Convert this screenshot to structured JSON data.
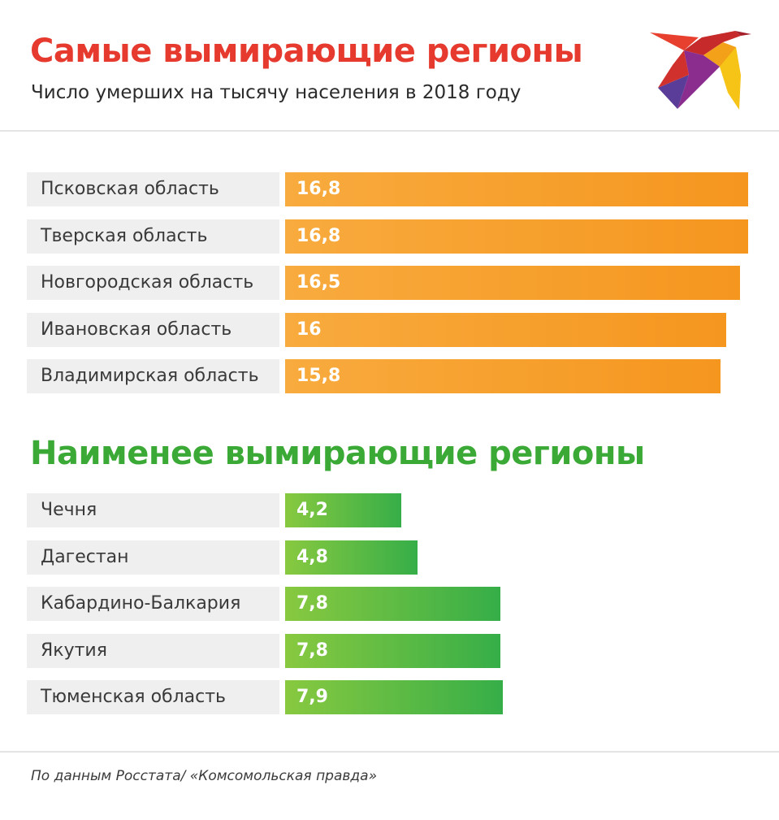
{
  "header": {
    "title": "Самые вымирающие регионы",
    "subtitle": "Число умерших на тысячу населения в 2018 году"
  },
  "colors": {
    "title_red": "#e63a2e",
    "title_green": "#3aa935",
    "bar_orange": "#f5961f",
    "bar_green": "#36ae48"
  },
  "logo": {
    "icon": "kp-swallow-logo-icon"
  },
  "chart_data": [
    {
      "type": "bar",
      "orientation": "horizontal",
      "title": "Самые вымирающие регионы",
      "categories": [
        "Псковская область",
        "Тверская область",
        "Новгородская область",
        "Ивановская область",
        "Владимирская область"
      ],
      "values": [
        16.8,
        16.8,
        16.5,
        16,
        15.8
      ],
      "value_labels": [
        "16,8",
        "16,8",
        "16,5",
        "16",
        "15,8"
      ],
      "xlim": [
        0,
        16.8
      ]
    },
    {
      "type": "bar",
      "orientation": "horizontal",
      "title": "Наименее вымирающие  регионы",
      "categories": [
        "Чечня",
        "Дагестан",
        "Кабардино-Балкария",
        "Якутия",
        "Тюменская область"
      ],
      "values": [
        4.2,
        4.8,
        7.8,
        7.8,
        7.9
      ],
      "value_labels": [
        "4,2",
        "4,8",
        "7,8",
        "7,8",
        "7,9"
      ],
      "xlim": [
        0,
        16.8
      ]
    }
  ],
  "footer": {
    "source": "По данным Росстата/ «Комсомольская правда»"
  }
}
